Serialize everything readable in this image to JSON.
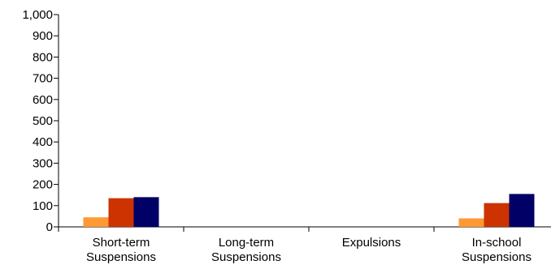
{
  "chart_data": {
    "type": "bar",
    "categories": [
      [
        "Short-term",
        "Suspensions"
      ],
      [
        "Long-term",
        "Suspensions"
      ],
      [
        "Expulsions"
      ],
      [
        "In-school",
        "Suspensions"
      ]
    ],
    "series": [
      {
        "color": "#FF9933",
        "values": [
          45,
          0,
          0,
          40
        ]
      },
      {
        "color": "#CC3300",
        "values": [
          135,
          0,
          0,
          112
        ]
      },
      {
        "color": "#000066",
        "values": [
          140,
          0,
          0,
          155
        ]
      }
    ],
    "y_ticks": [
      "0",
      "100",
      "200",
      "300",
      "400",
      "500",
      "600",
      "700",
      "800",
      "900",
      "1,000"
    ],
    "ylim": [
      0,
      1000
    ],
    "grid": false,
    "legend": "none"
  }
}
